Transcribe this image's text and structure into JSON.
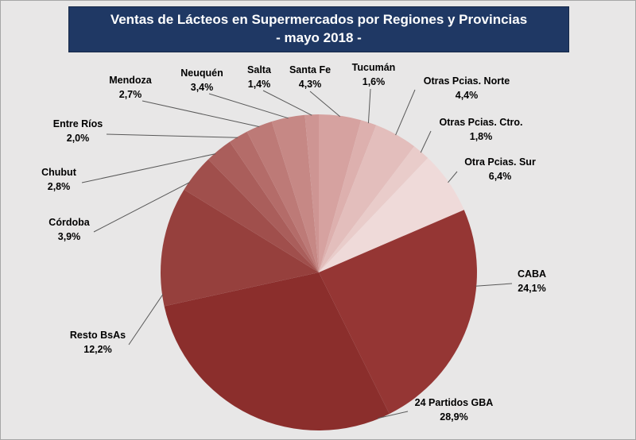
{
  "title": {
    "line1": "Ventas de Lácteos en Supermercados por Regiones y Provincias",
    "line2": "- mayo 2018 -"
  },
  "colors": {
    "title_bg": "#1F3864",
    "title_border": "#152847",
    "title_text": "#FFFFFF",
    "canvas_bg": "#E8E7E7",
    "canvas_border": "#A6A6A6",
    "label_text": "#000000",
    "leader_line": "#595959"
  },
  "chart_data": {
    "type": "pie",
    "title": "Ventas de Lácteos en Supermercados por Regiones y Provincias",
    "subtitle": "- mayo 2018 -",
    "unit": "%",
    "start_angle_deg": 0,
    "direction": "clockwise",
    "legend": "none",
    "slices": [
      {
        "label": "Santa Fe",
        "value": 4.3,
        "value_label": "4,3%",
        "color": "#D6A2A0"
      },
      {
        "label": "Tucumán",
        "value": 1.6,
        "value_label": "1,6%",
        "color": "#DDB0AE"
      },
      {
        "label": "Otras Pcias. Norte",
        "value": 4.4,
        "value_label": "4,4%",
        "color": "#E3BEBC"
      },
      {
        "label": "Otras Pcias. Ctro.",
        "value": 1.8,
        "value_label": "1,8%",
        "color": "#E9CCCA"
      },
      {
        "label": "Otra Pcias. Sur",
        "value": 6.4,
        "value_label": "6,4%",
        "color": "#EFDAD9"
      },
      {
        "label": "CABA",
        "value": 24.1,
        "value_label": "24,1%",
        "color": "#953634"
      },
      {
        "label": "24 Partidos GBA",
        "value": 28.9,
        "value_label": "28,9%",
        "color": "#8B2E2C"
      },
      {
        "label": "Resto BsAs",
        "value": 12.2,
        "value_label": "12,2%",
        "color": "#96403D"
      },
      {
        "label": "Córdoba",
        "value": 3.9,
        "value_label": "3,9%",
        "color": "#A04F4C"
      },
      {
        "label": "Chubut",
        "value": 2.8,
        "value_label": "2,8%",
        "color": "#AA5E5B"
      },
      {
        "label": "Entre Ríos",
        "value": 2.0,
        "value_label": "2,0%",
        "color": "#B46C69"
      },
      {
        "label": "Mendoza",
        "value": 2.7,
        "value_label": "2,7%",
        "color": "#BD7A77"
      },
      {
        "label": "Neuquén",
        "value": 3.4,
        "value_label": "3,4%",
        "color": "#C68885"
      },
      {
        "label": "Salta",
        "value": 1.4,
        "value_label": "1,4%",
        "color": "#CE9593"
      }
    ]
  }
}
